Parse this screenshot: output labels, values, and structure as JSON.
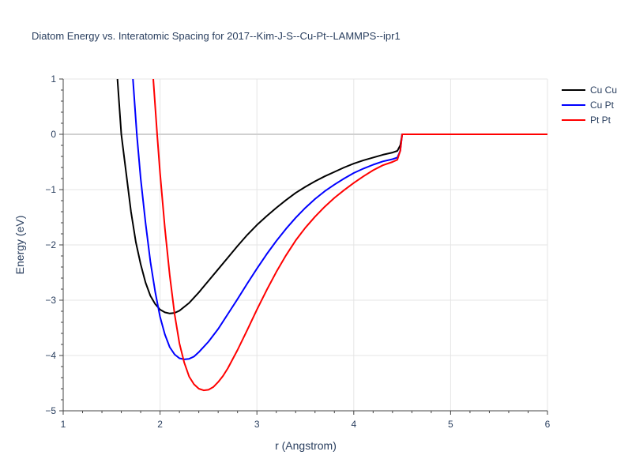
{
  "chart_data": {
    "type": "line",
    "title": "Diatom Energy vs. Interatomic Spacing for 2017--Kim-J-S--Cu-Pt--LAMMPS--ipr1",
    "xlabel": "r (Angstrom)",
    "ylabel": "Energy (eV)",
    "xlim": [
      1,
      6
    ],
    "ylim": [
      -5,
      1
    ],
    "x_ticks": [
      1,
      2,
      3,
      4,
      5,
      6
    ],
    "y_ticks": [
      1,
      0,
      -1,
      -2,
      -3,
      -4,
      -5
    ],
    "x_tick_labels": [
      "1",
      "2",
      "3",
      "4",
      "5",
      "6"
    ],
    "y_tick_labels": [
      "1",
      "0",
      "−1",
      "−2",
      "−3",
      "−4",
      "−5"
    ],
    "grid": true,
    "legend_position": "top-right",
    "series": [
      {
        "name": "Cu Cu",
        "color": "#000000",
        "points": [
          [
            1.56,
            1.0
          ],
          [
            1.6,
            0.0
          ],
          [
            1.65,
            -0.7
          ],
          [
            1.7,
            -1.4
          ],
          [
            1.75,
            -1.95
          ],
          [
            1.8,
            -2.35
          ],
          [
            1.85,
            -2.68
          ],
          [
            1.9,
            -2.92
          ],
          [
            1.95,
            -3.07
          ],
          [
            2.0,
            -3.17
          ],
          [
            2.05,
            -3.22
          ],
          [
            2.1,
            -3.24
          ],
          [
            2.15,
            -3.23
          ],
          [
            2.2,
            -3.19
          ],
          [
            2.3,
            -3.05
          ],
          [
            2.4,
            -2.86
          ],
          [
            2.5,
            -2.65
          ],
          [
            2.6,
            -2.44
          ],
          [
            2.7,
            -2.23
          ],
          [
            2.8,
            -2.02
          ],
          [
            2.9,
            -1.82
          ],
          [
            3.0,
            -1.64
          ],
          [
            3.1,
            -1.48
          ],
          [
            3.2,
            -1.33
          ],
          [
            3.3,
            -1.19
          ],
          [
            3.4,
            -1.06
          ],
          [
            3.5,
            -0.95
          ],
          [
            3.6,
            -0.85
          ],
          [
            3.7,
            -0.76
          ],
          [
            3.8,
            -0.68
          ],
          [
            3.9,
            -0.6
          ],
          [
            4.0,
            -0.53
          ],
          [
            4.1,
            -0.47
          ],
          [
            4.2,
            -0.42
          ],
          [
            4.3,
            -0.37
          ],
          [
            4.4,
            -0.33
          ],
          [
            4.45,
            -0.3
          ],
          [
            4.48,
            -0.2
          ],
          [
            4.5,
            0.0
          ],
          [
            5.0,
            0.0
          ],
          [
            5.5,
            0.0
          ],
          [
            6.0,
            0.0
          ]
        ]
      },
      {
        "name": "Cu Pt",
        "color": "#0000ff",
        "points": [
          [
            1.72,
            1.0
          ],
          [
            1.76,
            0.0
          ],
          [
            1.8,
            -0.8
          ],
          [
            1.85,
            -1.6
          ],
          [
            1.9,
            -2.3
          ],
          [
            1.95,
            -2.85
          ],
          [
            2.0,
            -3.3
          ],
          [
            2.05,
            -3.62
          ],
          [
            2.1,
            -3.85
          ],
          [
            2.15,
            -3.98
          ],
          [
            2.2,
            -4.05
          ],
          [
            2.25,
            -4.07
          ],
          [
            2.3,
            -4.06
          ],
          [
            2.35,
            -4.02
          ],
          [
            2.4,
            -3.94
          ],
          [
            2.5,
            -3.75
          ],
          [
            2.6,
            -3.52
          ],
          [
            2.7,
            -3.25
          ],
          [
            2.8,
            -2.98
          ],
          [
            2.9,
            -2.7
          ],
          [
            3.0,
            -2.43
          ],
          [
            3.1,
            -2.17
          ],
          [
            3.2,
            -1.93
          ],
          [
            3.3,
            -1.71
          ],
          [
            3.4,
            -1.51
          ],
          [
            3.5,
            -1.33
          ],
          [
            3.6,
            -1.17
          ],
          [
            3.7,
            -1.03
          ],
          [
            3.8,
            -0.91
          ],
          [
            3.9,
            -0.8
          ],
          [
            4.0,
            -0.7
          ],
          [
            4.1,
            -0.62
          ],
          [
            4.2,
            -0.55
          ],
          [
            4.3,
            -0.49
          ],
          [
            4.4,
            -0.45
          ],
          [
            4.45,
            -0.42
          ],
          [
            4.48,
            -0.3
          ],
          [
            4.5,
            0.0
          ],
          [
            5.0,
            0.0
          ],
          [
            5.5,
            0.0
          ],
          [
            6.0,
            0.0
          ]
        ]
      },
      {
        "name": "Pt Pt",
        "color": "#ff0000",
        "points": [
          [
            1.93,
            1.0
          ],
          [
            1.97,
            0.0
          ],
          [
            2.0,
            -0.7
          ],
          [
            2.05,
            -1.7
          ],
          [
            2.1,
            -2.55
          ],
          [
            2.15,
            -3.25
          ],
          [
            2.2,
            -3.78
          ],
          [
            2.25,
            -4.13
          ],
          [
            2.3,
            -4.38
          ],
          [
            2.35,
            -4.52
          ],
          [
            2.4,
            -4.6
          ],
          [
            2.45,
            -4.63
          ],
          [
            2.5,
            -4.62
          ],
          [
            2.55,
            -4.57
          ],
          [
            2.6,
            -4.48
          ],
          [
            2.65,
            -4.37
          ],
          [
            2.7,
            -4.23
          ],
          [
            2.8,
            -3.9
          ],
          [
            2.9,
            -3.54
          ],
          [
            3.0,
            -3.17
          ],
          [
            3.1,
            -2.82
          ],
          [
            3.2,
            -2.49
          ],
          [
            3.3,
            -2.19
          ],
          [
            3.4,
            -1.92
          ],
          [
            3.5,
            -1.69
          ],
          [
            3.6,
            -1.49
          ],
          [
            3.7,
            -1.31
          ],
          [
            3.8,
            -1.15
          ],
          [
            3.9,
            -1.01
          ],
          [
            4.0,
            -0.88
          ],
          [
            4.1,
            -0.76
          ],
          [
            4.2,
            -0.65
          ],
          [
            4.3,
            -0.56
          ],
          [
            4.4,
            -0.5
          ],
          [
            4.45,
            -0.46
          ],
          [
            4.48,
            -0.3
          ],
          [
            4.5,
            0.0
          ],
          [
            5.0,
            0.0
          ],
          [
            5.5,
            0.0
          ],
          [
            6.0,
            0.0
          ]
        ]
      }
    ]
  }
}
